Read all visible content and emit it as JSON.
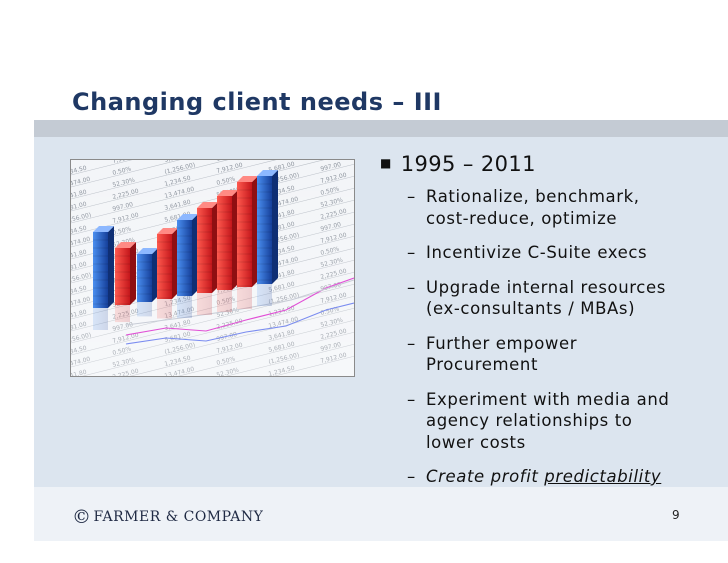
{
  "slide": {
    "title": "Changing client needs – III",
    "page_number": "9"
  },
  "bullets": {
    "heading": "1995 – 2011",
    "items": [
      {
        "lines": [
          "Rationalize, benchmark,",
          "cost-reduce, optimize"
        ]
      },
      {
        "lines": [
          "Incentivize C-Suite execs"
        ]
      },
      {
        "lines": [
          "Upgrade internal resources",
          "(ex-consultants / MBAs)"
        ]
      },
      {
        "lines": [
          "Further empower",
          "Procurement"
        ]
      },
      {
        "lines": [
          "Experiment with media and",
          "agency relationships to",
          "lower costs"
        ]
      },
      {
        "prefix": "Create profit ",
        "underlined": "predictability"
      }
    ]
  },
  "footer": {
    "copyright_symbol": "©",
    "company_name": "FARMER & COMPANY"
  },
  "colors": {
    "title": "#1f3864",
    "title_bar": "#c4cbd4",
    "content_band": "#dce5ef",
    "bar_red": "#e8262a",
    "bar_blue": "#1f5ec8"
  },
  "icons": {
    "bullet": "square-bullet-icon",
    "photo": "stock-chart-photo"
  }
}
